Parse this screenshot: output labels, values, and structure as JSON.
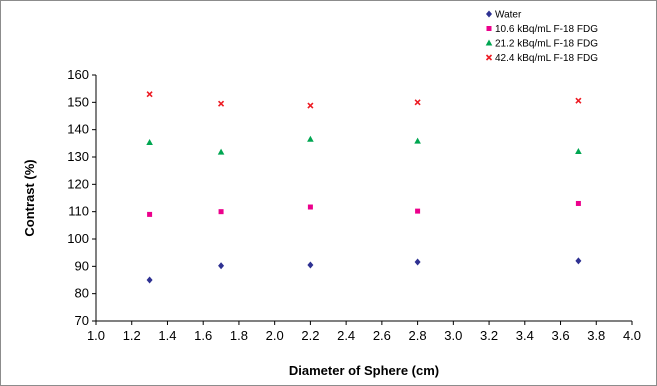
{
  "chart_data": {
    "type": "scatter",
    "xlabel": "Diameter of Sphere (cm)",
    "ylabel": "Contrast (%)",
    "xlim": [
      1.0,
      4.0
    ],
    "ylim": [
      70,
      160
    ],
    "x_ticks": [
      "1.0",
      "1.2",
      "1.4",
      "1.6",
      "1.8",
      "2.0",
      "2.2",
      "2.4",
      "2.6",
      "2.8",
      "3.0",
      "3.2",
      "3.4",
      "3.6",
      "3.8",
      "4.0"
    ],
    "y_ticks": [
      "70",
      "80",
      "90",
      "100",
      "110",
      "120",
      "130",
      "140",
      "150",
      "160"
    ],
    "x_tick_values": [
      1.0,
      1.2,
      1.4,
      1.6,
      1.8,
      2.0,
      2.2,
      2.4,
      2.6,
      2.8,
      3.0,
      3.2,
      3.4,
      3.6,
      3.8,
      4.0
    ],
    "y_tick_values": [
      70,
      80,
      90,
      100,
      110,
      120,
      130,
      140,
      150,
      160
    ],
    "grid": false,
    "legend_position": "top-right",
    "series": [
      {
        "name": "Water",
        "marker": "diamond",
        "color": "#2e3192",
        "x": [
          1.3,
          1.7,
          2.2,
          2.8,
          3.7
        ],
        "y": [
          85,
          90.2,
          90.5,
          91.6,
          92
        ]
      },
      {
        "name": "10.6 kBq/mL F-18 FDG",
        "marker": "square",
        "color": "#ec008c",
        "x": [
          1.3,
          1.7,
          2.2,
          2.8,
          3.7
        ],
        "y": [
          109,
          110,
          111.7,
          110.2,
          113
        ]
      },
      {
        "name": "21.2 kBq/mL F-18 FDG",
        "marker": "triangle",
        "color": "#00a651",
        "x": [
          1.3,
          1.7,
          2.2,
          2.8,
          3.7
        ],
        "y": [
          135.3,
          131.8,
          136.5,
          135.8,
          132
        ]
      },
      {
        "name": "42.4 kBq/mL F-18 FDG",
        "marker": "x",
        "color": "#ed1c24",
        "x": [
          1.3,
          1.7,
          2.2,
          2.8,
          3.7
        ],
        "y": [
          153,
          149.5,
          148.8,
          150,
          150.6
        ]
      }
    ]
  }
}
